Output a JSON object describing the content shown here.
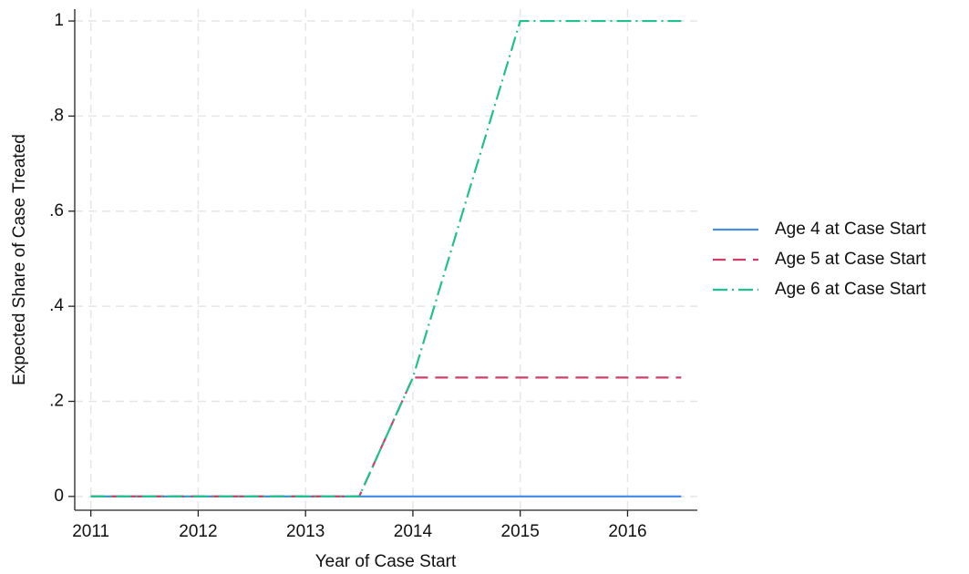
{
  "chart_data": {
    "type": "line",
    "x_label": "Year of Case Start",
    "y_label": "Expected Share of Case Treated",
    "x": [
      2011,
      2013.5,
      2014,
      2015,
      2016.5
    ],
    "series": [
      {
        "name": "Age 4 at Case Start",
        "color": "#4a8fe7",
        "style": "solid",
        "values": [
          0,
          0,
          0,
          0,
          0
        ]
      },
      {
        "name": "Age 5 at Case Start",
        "color": "#cf3f6a",
        "style": "dashed",
        "values": [
          0,
          0,
          0.25,
          0.25,
          0.25
        ]
      },
      {
        "name": "Age 6 at Case Start",
        "color": "#20c08f",
        "style": "dashdot",
        "values": [
          0,
          0,
          0.25,
          1,
          1
        ]
      }
    ],
    "xlim": [
      2010.85,
      2016.65
    ],
    "ylim": [
      -0.029,
      1.025
    ],
    "xticks": [
      2011,
      2012,
      2013,
      2014,
      2015,
      2016
    ],
    "yticks": [
      0,
      {
        "value": 0.2,
        "label": ".2"
      },
      {
        "value": 0.4,
        "label": ".4"
      },
      {
        "value": 0.6,
        "label": ".6"
      },
      {
        "value": 0.8,
        "label": ".8"
      },
      1
    ],
    "grid": true,
    "legend": "right"
  }
}
